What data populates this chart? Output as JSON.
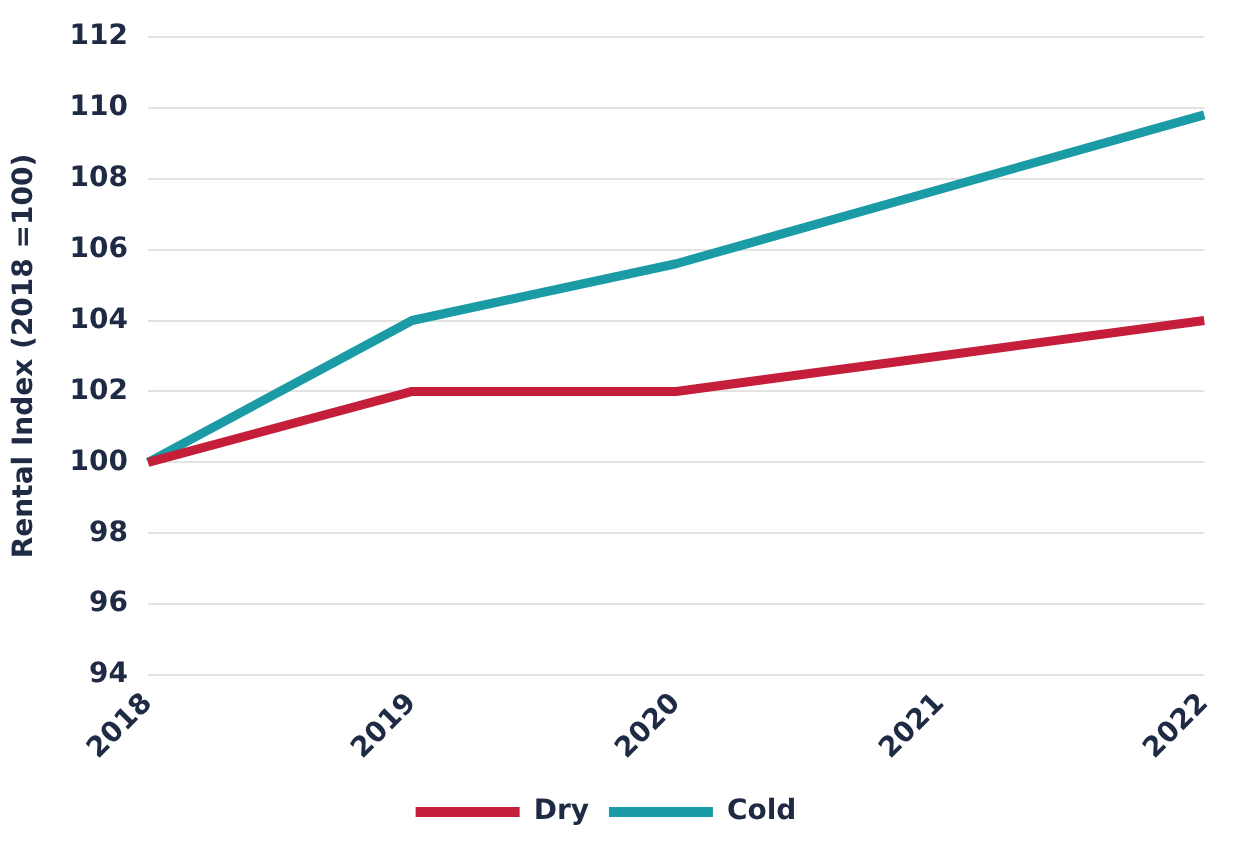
{
  "chart_data": {
    "type": "line",
    "ylabel": "Rental Index (2018 =100)",
    "categories": [
      "2018",
      "2019",
      "2020",
      "2021",
      "2022"
    ],
    "series": [
      {
        "name": "Dry",
        "color": "#c41e3a",
        "values": [
          100,
          102,
          102,
          103,
          104
        ]
      },
      {
        "name": "Cold",
        "color": "#1a9ba5",
        "values": [
          100,
          104,
          105.6,
          107.7,
          109.8
        ]
      }
    ],
    "ylim": [
      94,
      112
    ],
    "yticks": [
      94,
      96,
      98,
      100,
      102,
      104,
      106,
      108,
      110,
      112
    ],
    "grid": "y",
    "legend": "bottom",
    "marker": "none",
    "line_style": "solid"
  }
}
